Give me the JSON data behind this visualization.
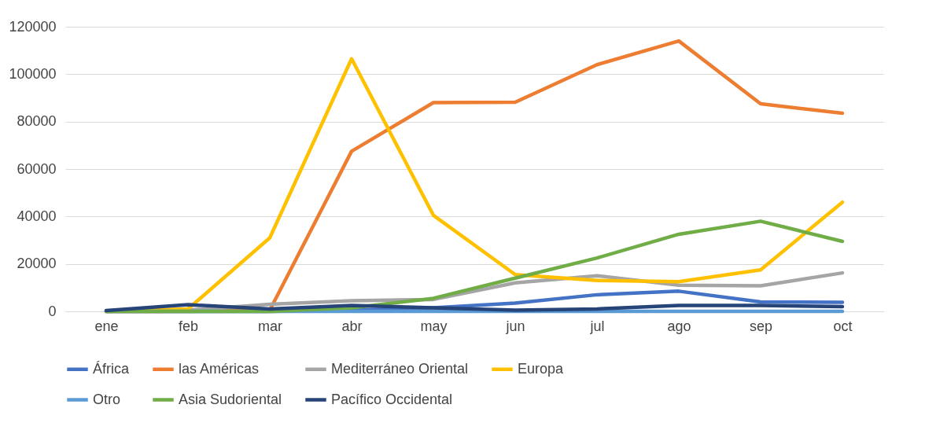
{
  "chart_data": {
    "type": "line",
    "categories": [
      "ene",
      "feb",
      "mar",
      "abr",
      "may",
      "jun",
      "jul",
      "ago",
      "sep",
      "oct"
    ],
    "series": [
      {
        "name": "África",
        "color": "#4472c4",
        "values": [
          0,
          0,
          0,
          500,
          1500,
          3500,
          7000,
          8500,
          4000,
          3800
        ]
      },
      {
        "name": "las Américas",
        "color": "#ed7d31",
        "values": [
          0,
          0,
          500,
          67500,
          88000,
          88200,
          104000,
          114000,
          87500,
          83500
        ]
      },
      {
        "name": "Mediterráneo Oriental",
        "color": "#a5a5a5",
        "values": [
          0,
          500,
          3000,
          4500,
          5000,
          12000,
          15000,
          11000,
          10800,
          16200
        ]
      },
      {
        "name": "Europa",
        "color": "#ffc000",
        "values": [
          0,
          1000,
          31000,
          106500,
          40500,
          15500,
          13000,
          12500,
          17500,
          46000
        ]
      },
      {
        "name": "Otro",
        "color": "#5b9bd5",
        "values": [
          0,
          0,
          0,
          0,
          0,
          0,
          0,
          0,
          0,
          0
        ]
      },
      {
        "name": "Asia Sudoriental",
        "color": "#70ad47",
        "values": [
          0,
          0,
          0,
          1500,
          5500,
          14000,
          22500,
          32500,
          38000,
          29500
        ]
      },
      {
        "name": "Pacífico Occidental",
        "color": "#264478",
        "values": [
          300,
          2800,
          1000,
          2500,
          1500,
          500,
          1000,
          2500,
          2500,
          2000
        ]
      }
    ],
    "ylim": [
      0,
      120000
    ],
    "yticks": [
      0,
      20000,
      40000,
      60000,
      80000,
      100000,
      120000
    ],
    "grid": "y",
    "legend": "bottom",
    "line_style": "solid",
    "marker": "none"
  }
}
